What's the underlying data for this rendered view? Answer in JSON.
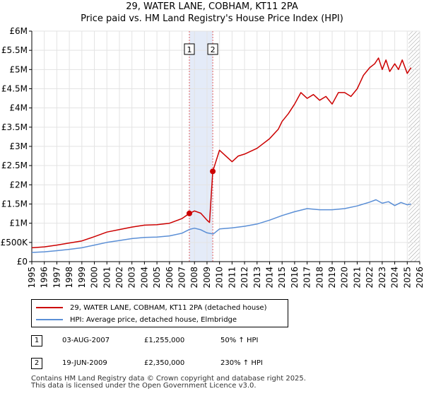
{
  "header": {
    "title": "29, WATER LANE, COBHAM, KT11 2PA",
    "subtitle": "Price paid vs. HM Land Registry's House Price Index (HPI)"
  },
  "chart_data": {
    "type": "line",
    "title": "Price paid vs. HM Land Registry's House Price Index (HPI)",
    "xlabel": "",
    "ylabel": "",
    "xlim": [
      1995,
      2026
    ],
    "ylim": [
      0,
      6000000
    ],
    "x_ticks": [
      "1995",
      "1996",
      "1997",
      "1998",
      "1999",
      "2000",
      "2001",
      "2002",
      "2003",
      "2004",
      "2005",
      "2006",
      "2007",
      "2008",
      "2009",
      "2010",
      "2011",
      "2012",
      "2013",
      "2014",
      "2015",
      "2016",
      "2017",
      "2018",
      "2019",
      "2020",
      "2021",
      "2022",
      "2023",
      "2024",
      "2025",
      "2026"
    ],
    "y_ticks": [
      {
        "value": 0,
        "label": "£0"
      },
      {
        "value": 500000,
        "label": "£500K"
      },
      {
        "value": 1000000,
        "label": "£1M"
      },
      {
        "value": 1500000,
        "label": "£1.5M"
      },
      {
        "value": 2000000,
        "label": "£2M"
      },
      {
        "value": 2500000,
        "label": "£2.5M"
      },
      {
        "value": 3000000,
        "label": "£3M"
      },
      {
        "value": 3500000,
        "label": "£3.5M"
      },
      {
        "value": 4000000,
        "label": "£4M"
      },
      {
        "value": 4500000,
        "label": "£4.5M"
      },
      {
        "value": 5000000,
        "label": "£5M"
      },
      {
        "value": 5500000,
        "label": "£5.5M"
      },
      {
        "value": 6000000,
        "label": "£6M"
      }
    ],
    "grid": true,
    "shaded_span": [
      2007.59,
      2009.46
    ],
    "hatched_from": 2025.1,
    "series": [
      {
        "name": "29, WATER LANE, COBHAM, KT11 2PA (detached house)",
        "color": "#cc0000",
        "x": [
          1995.0,
          1996.0,
          1997.0,
          1998.0,
          1999.0,
          2000.0,
          2001.0,
          2002.0,
          2003.0,
          2004.0,
          2005.0,
          2006.0,
          2007.0,
          2007.59,
          2008.0,
          2008.5,
          2009.0,
          2009.2,
          2009.46,
          2010.0,
          2011.0,
          2011.5,
          2012.0,
          2013.0,
          2014.0,
          2014.7,
          2015.0,
          2015.5,
          2016.0,
          2016.5,
          2017.0,
          2017.5,
          2018.0,
          2018.5,
          2019.0,
          2019.5,
          2020.0,
          2020.5,
          2021.0,
          2021.5,
          2022.0,
          2022.4,
          2022.7,
          2023.0,
          2023.3,
          2023.6,
          2024.0,
          2024.3,
          2024.6,
          2025.0,
          2025.3
        ],
        "values": [
          360000,
          385000,
          430000,
          485000,
          540000,
          650000,
          770000,
          835000,
          900000,
          950000,
          960000,
          1000000,
          1120000,
          1255000,
          1320000,
          1260000,
          1080000,
          1020000,
          2350000,
          2900000,
          2600000,
          2750000,
          2800000,
          2950000,
          3200000,
          3450000,
          3650000,
          3850000,
          4100000,
          4400000,
          4250000,
          4350000,
          4200000,
          4300000,
          4100000,
          4400000,
          4400000,
          4300000,
          4500000,
          4850000,
          5050000,
          5150000,
          5300000,
          5000000,
          5250000,
          4950000,
          5150000,
          5000000,
          5250000,
          4900000,
          5050000
        ]
      },
      {
        "name": "HPI: Average price, detached house, Elmbridge",
        "color": "#5b8fd6",
        "x": [
          1995.0,
          1996.0,
          1997.0,
          1998.0,
          1999.0,
          2000.0,
          2001.0,
          2002.0,
          2003.0,
          2004.0,
          2005.0,
          2006.0,
          2007.0,
          2007.6,
          2008.0,
          2008.5,
          2009.0,
          2009.5,
          2010.0,
          2011.0,
          2012.0,
          2013.0,
          2014.0,
          2015.0,
          2016.0,
          2017.0,
          2018.0,
          2019.0,
          2020.0,
          2021.0,
          2022.0,
          2022.5,
          2023.0,
          2023.5,
          2024.0,
          2024.5,
          2025.0,
          2025.3
        ],
        "values": [
          240000,
          255000,
          285000,
          320000,
          360000,
          430000,
          500000,
          550000,
          600000,
          630000,
          640000,
          670000,
          740000,
          840000,
          870000,
          830000,
          750000,
          720000,
          850000,
          880000,
          920000,
          980000,
          1080000,
          1200000,
          1300000,
          1380000,
          1350000,
          1350000,
          1380000,
          1450000,
          1550000,
          1610000,
          1520000,
          1560000,
          1460000,
          1540000,
          1480000,
          1500000
        ]
      }
    ],
    "transactions": [
      {
        "id": "1",
        "x": 2007.59,
        "price": 1255000
      },
      {
        "id": "2",
        "x": 2009.46,
        "price": 2350000
      }
    ]
  },
  "legend": {
    "property_label": "29, WATER LANE, COBHAM, KT11 2PA (detached house)",
    "hpi_label": "HPI: Average price, detached house, Elmbridge"
  },
  "transactions_table": [
    {
      "id": "1",
      "date": "03-AUG-2007",
      "price": "£1,255,000",
      "hpi": "50% ↑ HPI"
    },
    {
      "id": "2",
      "date": "19-JUN-2009",
      "price": "£2,350,000",
      "hpi": "230% ↑ HPI"
    }
  ],
  "footer": {
    "line1": "Contains HM Land Registry data © Crown copyright and database right 2025.",
    "line2": "This data is licensed under the Open Government Licence v3.0."
  }
}
